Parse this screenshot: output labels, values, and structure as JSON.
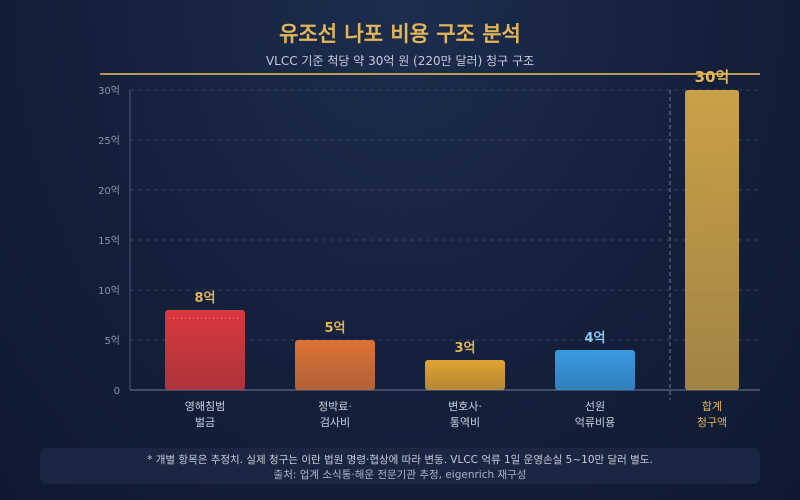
{
  "title": "유조선 나포 비용 구조 분석",
  "subtitle": "VLCC 기준 척당 약 30억 원 (220만 달러) 청구 구조",
  "colors": {
    "accent": "#e2b657",
    "bars": [
      "#d8393d",
      "#dd7236",
      "#e0a332",
      "#3a9ae0",
      "#caa048"
    ]
  },
  "chart_data": {
    "type": "bar",
    "categories": [
      [
        "영해침범",
        "벌금"
      ],
      [
        "정박료·",
        "검사비"
      ],
      [
        "변호사·",
        "통역비"
      ],
      [
        "선원",
        "억류비용"
      ],
      [
        "합계",
        "청구액"
      ]
    ],
    "values": [
      8,
      5,
      3,
      4,
      30
    ],
    "value_labels": [
      "8억",
      "5억",
      "3억",
      "4억",
      "30억"
    ],
    "y_ticks": [
      "0",
      "5억",
      "10억",
      "15억",
      "20억",
      "25억",
      "30억"
    ],
    "ylim": [
      0,
      30
    ],
    "grid": true
  },
  "notes": {
    "line1": "* 개별 항목은 추정치. 실제 청구는 이란 법원 명령·협상에 따라 변동. VLCC 억류 1일 운영손실 5~10만 달러 별도.",
    "line2": "출처: 업계 소식통·해운 전문기관 추정, eigenrich 재구성"
  }
}
